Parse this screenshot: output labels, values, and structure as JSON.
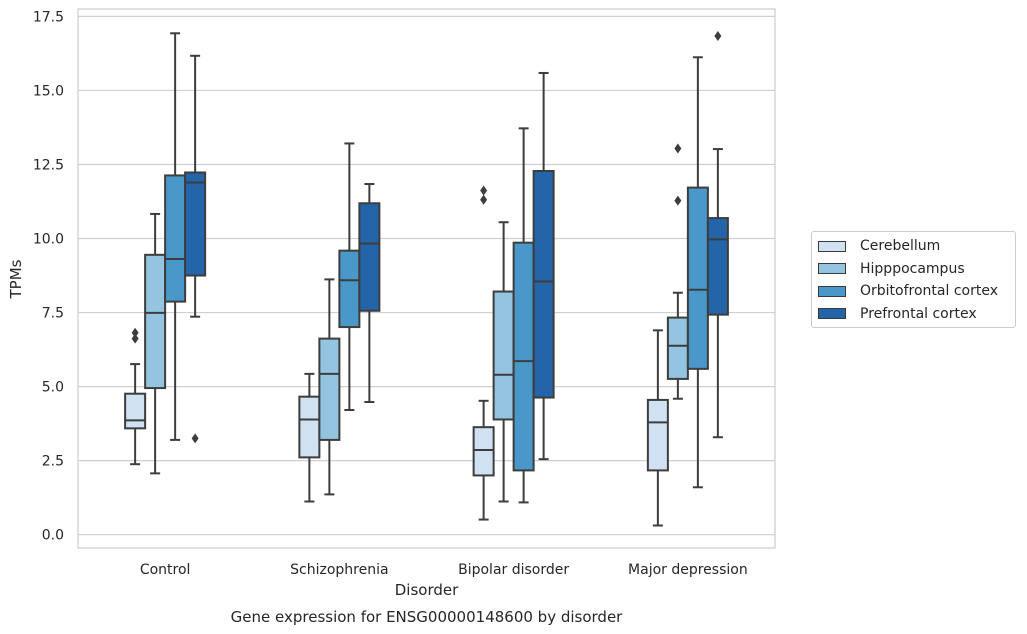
{
  "chart_data": {
    "type": "box",
    "title": "",
    "xlabel": "Disorder",
    "ylabel": "TPMs",
    "caption": "Gene expression for ENSG00000148600 by disorder",
    "ylim": [
      -0.45,
      17.75
    ],
    "yticks": [
      "0.0",
      "2.5",
      "5.0",
      "7.5",
      "10.0",
      "12.5",
      "15.0",
      "17.5"
    ],
    "ytick_values": [
      0,
      2.5,
      5,
      7.5,
      10,
      12.5,
      15,
      17.5
    ],
    "grid": "horizontal",
    "legend_position": "right",
    "categories": [
      "Control",
      "Schizophrenia",
      "Bipolar disorder",
      "Major depression"
    ],
    "series": [
      {
        "name": "Cerebellum",
        "color": "#d0e1f2",
        "boxes": [
          {
            "whisker_low": 2.38,
            "q1": 3.59,
            "median": 3.86,
            "q3": 4.76,
            "whisker_high": 5.76,
            "outliers": [
              6.62,
              6.82
            ]
          },
          {
            "whisker_low": 1.12,
            "q1": 2.61,
            "median": 3.89,
            "q3": 4.66,
            "whisker_high": 5.43,
            "outliers": []
          },
          {
            "whisker_low": 0.51,
            "q1": 2.0,
            "median": 2.86,
            "q3": 3.63,
            "whisker_high": 4.52,
            "outliers": [
              11.31,
              11.62
            ]
          },
          {
            "whisker_low": 0.31,
            "q1": 2.17,
            "median": 3.79,
            "q3": 4.55,
            "whisker_high": 6.9,
            "outliers": []
          }
        ]
      },
      {
        "name": "Hipppocampus",
        "color": "#94c4df",
        "boxes": [
          {
            "whisker_low": 2.07,
            "q1": 4.95,
            "median": 7.49,
            "q3": 9.45,
            "whisker_high": 10.83,
            "outliers": []
          },
          {
            "whisker_low": 1.36,
            "q1": 3.2,
            "median": 5.43,
            "q3": 6.62,
            "whisker_high": 8.62,
            "outliers": []
          },
          {
            "whisker_low": 1.12,
            "q1": 3.89,
            "median": 5.4,
            "q3": 8.21,
            "whisker_high": 10.55,
            "outliers": []
          },
          {
            "whisker_low": 4.59,
            "q1": 5.26,
            "median": 6.38,
            "q3": 7.33,
            "whisker_high": 8.17,
            "outliers": [
              11.28,
              13.04
            ]
          }
        ]
      },
      {
        "name": "Orbitofrontal cortex",
        "color": "#4a98c9",
        "boxes": [
          {
            "whisker_low": 3.2,
            "q1": 7.87,
            "median": 9.31,
            "q3": 12.13,
            "whisker_high": 16.93,
            "outliers": []
          },
          {
            "whisker_low": 4.21,
            "q1": 7.01,
            "median": 8.59,
            "q3": 9.59,
            "whisker_high": 13.21,
            "outliers": []
          },
          {
            "whisker_low": 1.09,
            "q1": 2.17,
            "median": 5.86,
            "q3": 9.86,
            "whisker_high": 13.72,
            "outliers": []
          },
          {
            "whisker_low": 1.6,
            "q1": 5.6,
            "median": 8.27,
            "q3": 11.72,
            "whisker_high": 16.12,
            "outliers": []
          }
        ]
      },
      {
        "name": "Prefrontal cortex",
        "color": "#2464a8",
        "boxes": [
          {
            "whisker_low": 7.36,
            "q1": 8.75,
            "median": 11.89,
            "q3": 12.23,
            "whisker_high": 16.17,
            "outliers": [
              3.25
            ]
          },
          {
            "whisker_low": 4.48,
            "q1": 7.56,
            "median": 9.83,
            "q3": 11.19,
            "whisker_high": 11.84,
            "outliers": []
          },
          {
            "whisker_low": 2.55,
            "q1": 4.63,
            "median": 8.55,
            "q3": 12.28,
            "whisker_high": 15.59,
            "outliers": []
          },
          {
            "whisker_low": 3.29,
            "q1": 7.43,
            "median": 9.97,
            "q3": 10.69,
            "whisker_high": 13.02,
            "outliers": [
              16.84
            ]
          }
        ]
      }
    ]
  }
}
